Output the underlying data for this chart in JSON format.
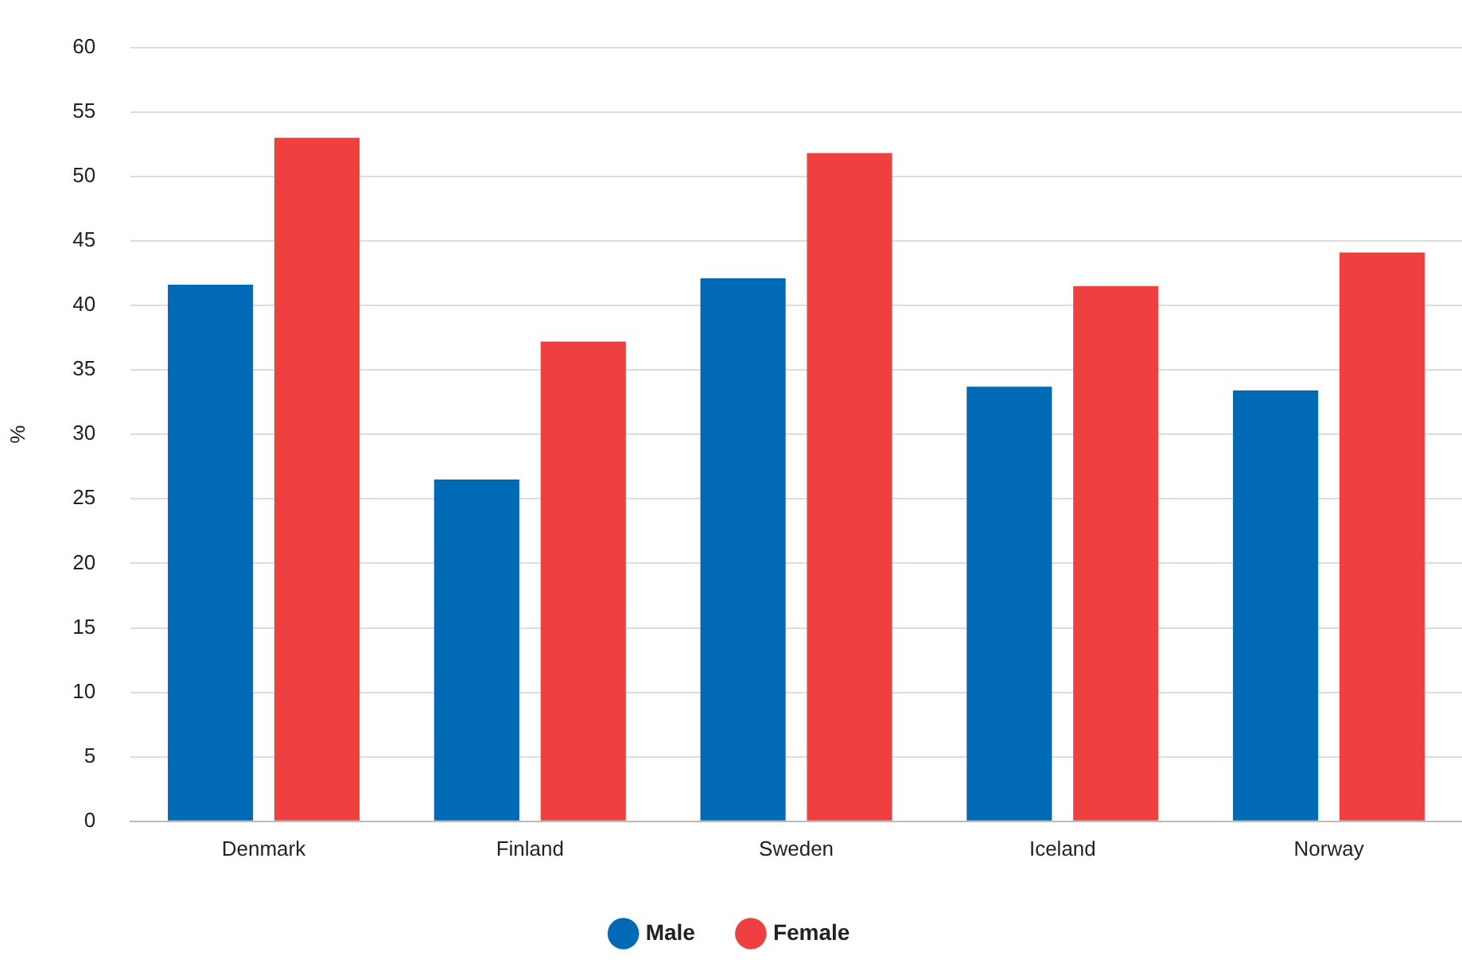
{
  "chart_data": {
    "type": "bar",
    "ylabel": "%",
    "categories": [
      "Denmark",
      "Finland",
      "Sweden",
      "Iceland",
      "Norway"
    ],
    "series": [
      {
        "name": "Male",
        "color": "#006ab7",
        "values": [
          41.6,
          26.5,
          42.1,
          33.7,
          33.4
        ]
      },
      {
        "name": "Female",
        "color": "#ef4040",
        "values": [
          53.0,
          37.2,
          51.8,
          41.5,
          44.1
        ]
      }
    ],
    "ylim": [
      0,
      60
    ],
    "yticks": [
      0,
      5,
      10,
      15,
      20,
      25,
      30,
      35,
      40,
      45,
      50,
      55,
      60
    ],
    "grid": "y",
    "legend": "bottom"
  }
}
